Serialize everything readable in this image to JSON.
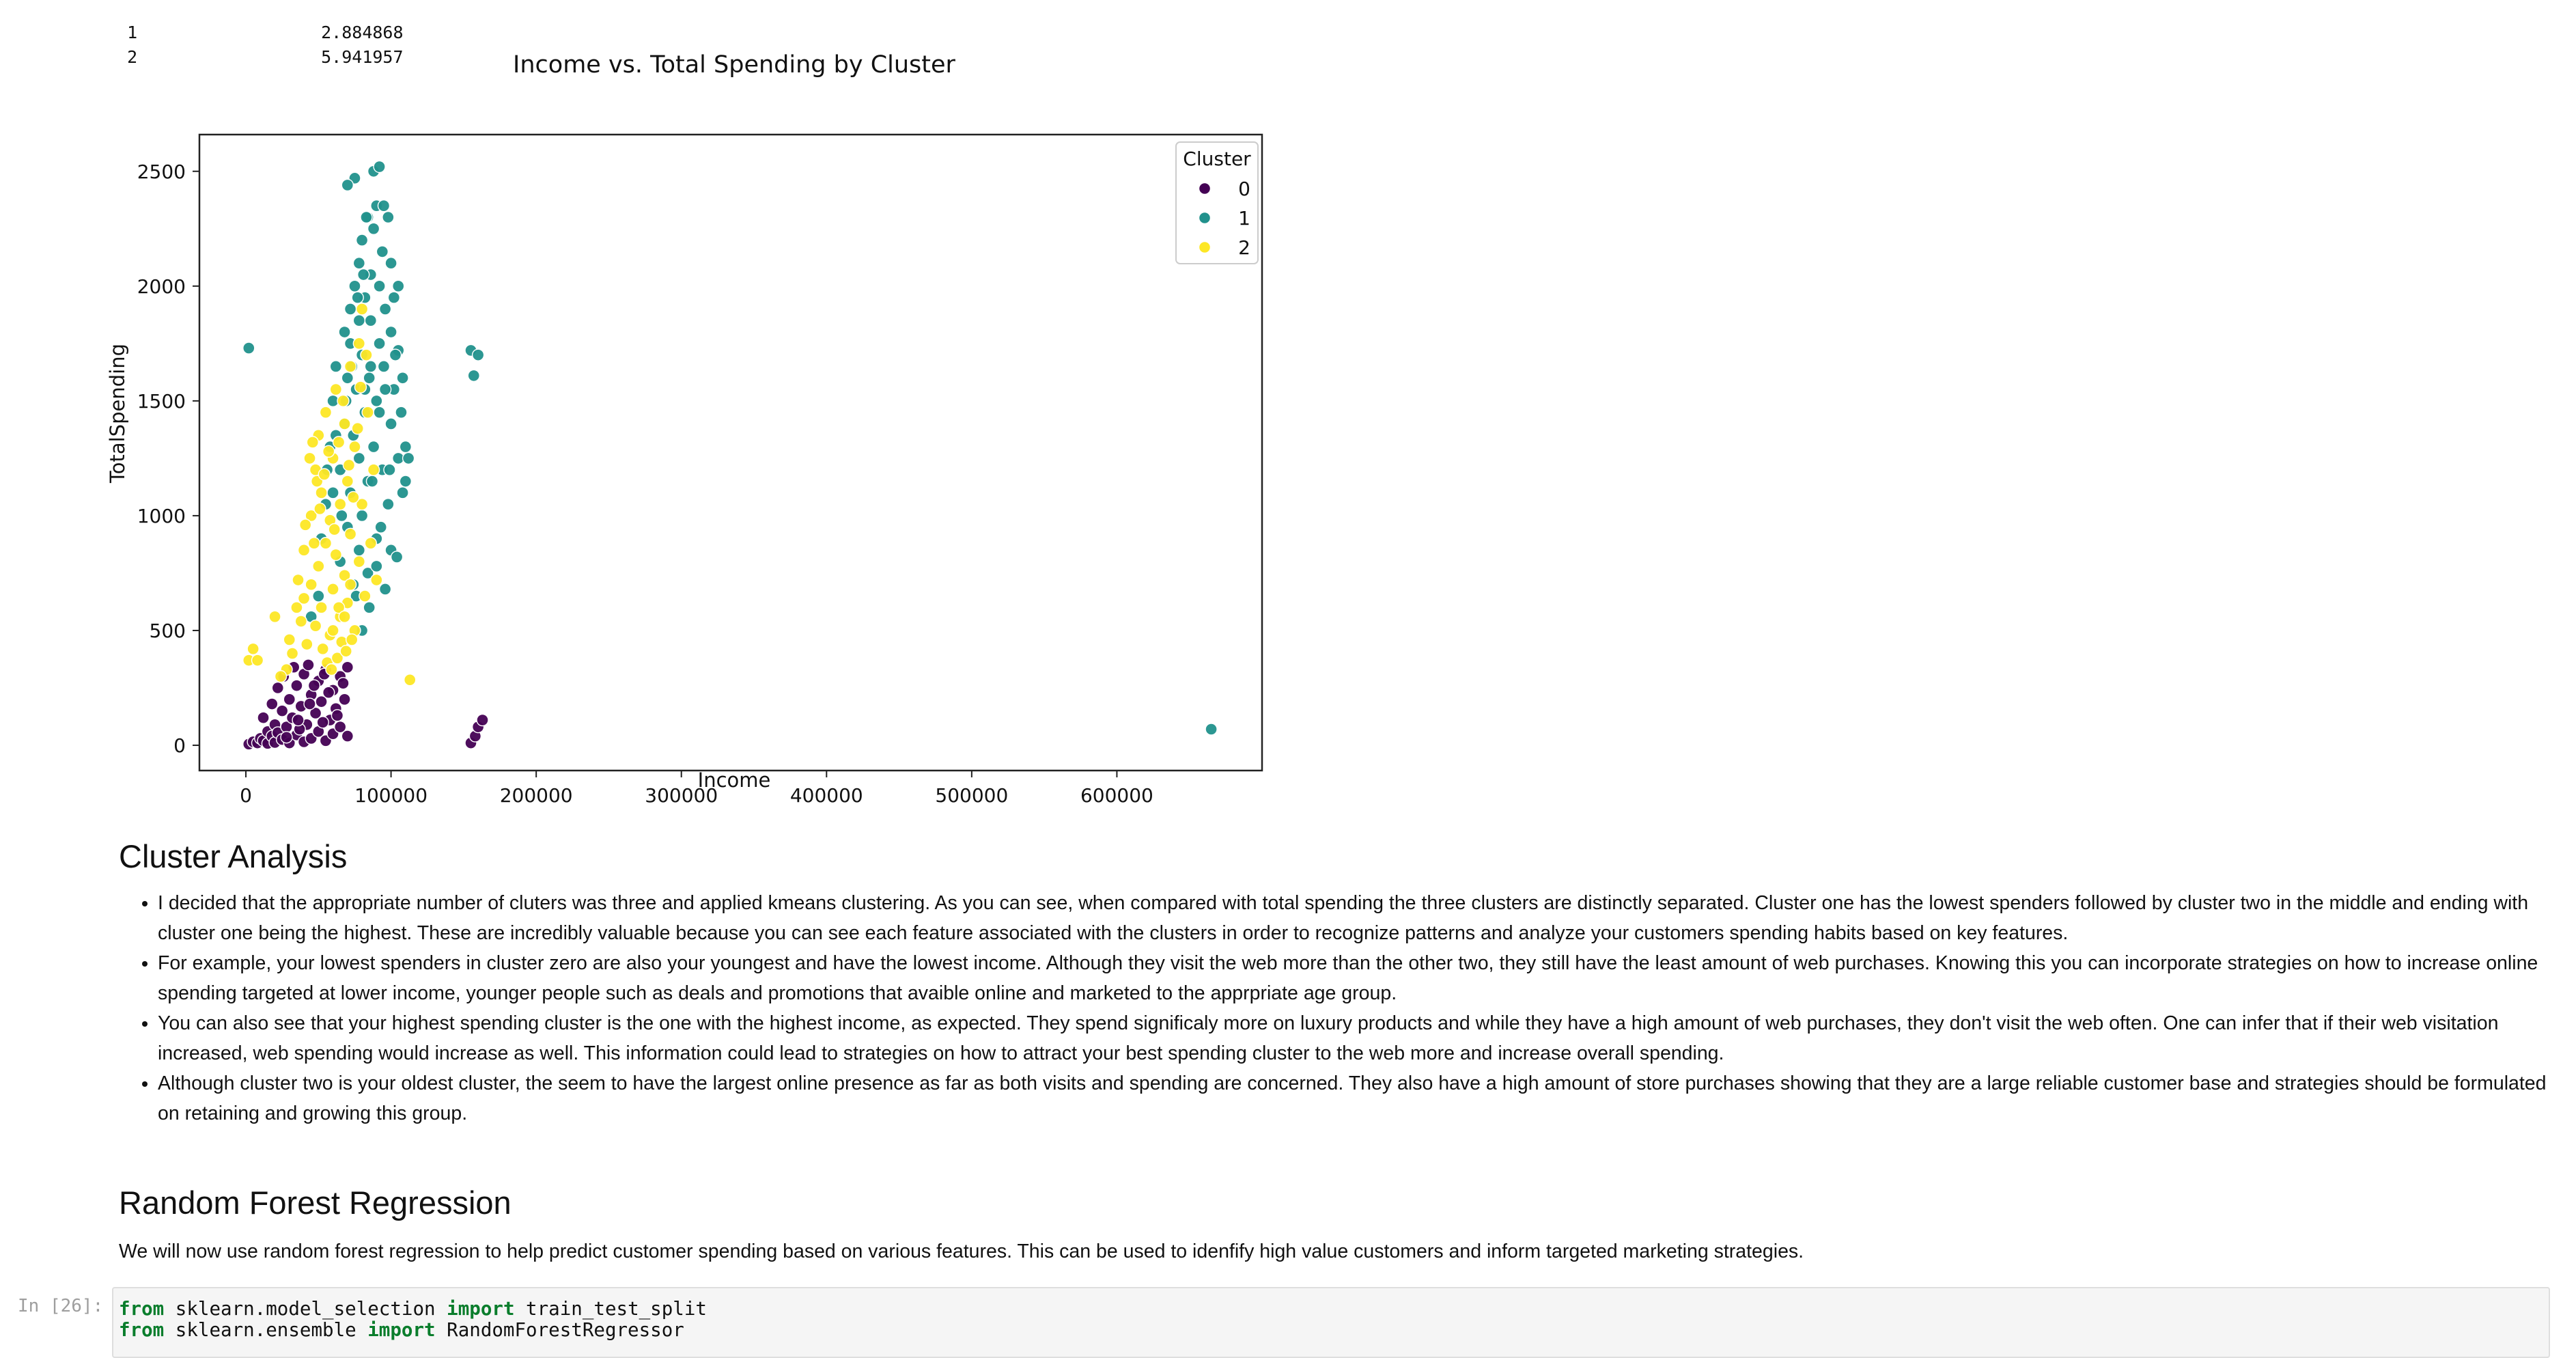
{
  "output_table": {
    "rows": [
      {
        "index": "1",
        "value": "2.884868"
      },
      {
        "index": "2",
        "value": "5.941957"
      }
    ]
  },
  "chart_data": {
    "type": "scatter",
    "title": "Income vs. Total Spending by Cluster",
    "xlabel": "Income",
    "ylabel": "TotalSpending",
    "xlim": [
      -32000,
      700000
    ],
    "ylim": [
      -110,
      2660
    ],
    "xticks": [
      0,
      100000,
      200000,
      300000,
      400000,
      500000,
      600000
    ],
    "yticks": [
      0,
      500,
      1000,
      1500,
      2000,
      2500
    ],
    "legend": {
      "title": "Cluster",
      "placement": "top-right"
    },
    "series": [
      {
        "name": "0",
        "color": "#440154",
        "points": [
          [
            2000,
            5
          ],
          [
            5000,
            15
          ],
          [
            8000,
            10
          ],
          [
            10000,
            30
          ],
          [
            12000,
            20
          ],
          [
            15000,
            8
          ],
          [
            15000,
            60
          ],
          [
            18000,
            40
          ],
          [
            20000,
            12
          ],
          [
            20000,
            90
          ],
          [
            22000,
            55
          ],
          [
            25000,
            25
          ],
          [
            25000,
            150
          ],
          [
            28000,
            80
          ],
          [
            30000,
            10
          ],
          [
            30000,
            200
          ],
          [
            32000,
            120
          ],
          [
            35000,
            45
          ],
          [
            35000,
            260
          ],
          [
            38000,
            170
          ],
          [
            40000,
            15
          ],
          [
            40000,
            310
          ],
          [
            42000,
            90
          ],
          [
            45000,
            220
          ],
          [
            45000,
            30
          ],
          [
            48000,
            140
          ],
          [
            50000,
            280
          ],
          [
            50000,
            60
          ],
          [
            52000,
            190
          ],
          [
            55000,
            20
          ],
          [
            55000,
            330
          ],
          [
            58000,
            110
          ],
          [
            60000,
            240
          ],
          [
            60000,
            50
          ],
          [
            62000,
            160
          ],
          [
            65000,
            300
          ],
          [
            65000,
            80
          ],
          [
            68000,
            200
          ],
          [
            70000,
            40
          ],
          [
            70000,
            340
          ],
          [
            12000,
            120
          ],
          [
            18000,
            180
          ],
          [
            22000,
            250
          ],
          [
            26000,
            300
          ],
          [
            33000,
            340
          ],
          [
            37000,
            70
          ],
          [
            43000,
            350
          ],
          [
            47000,
            260
          ],
          [
            53000,
            100
          ],
          [
            57000,
            230
          ],
          [
            63000,
            130
          ],
          [
            67000,
            270
          ],
          [
            28000,
            35
          ],
          [
            36000,
            110
          ],
          [
            44000,
            180
          ],
          [
            54000,
            310
          ],
          [
            155000,
            10
          ],
          [
            158000,
            40
          ],
          [
            160000,
            80
          ],
          [
            163000,
            110
          ]
        ]
      },
      {
        "name": "1",
        "color": "#21918c",
        "points": [
          [
            2000,
            1730
          ],
          [
            155000,
            1720
          ],
          [
            160000,
            1700
          ],
          [
            157000,
            1610
          ],
          [
            665000,
            70
          ],
          [
            105000,
            1720
          ],
          [
            45000,
            560
          ],
          [
            50000,
            650
          ],
          [
            52000,
            900
          ],
          [
            55000,
            1050
          ],
          [
            58000,
            1300
          ],
          [
            60000,
            1500
          ],
          [
            62000,
            1650
          ],
          [
            65000,
            800
          ],
          [
            65000,
            1200
          ],
          [
            68000,
            1400
          ],
          [
            68000,
            1800
          ],
          [
            70000,
            950
          ],
          [
            70000,
            1600
          ],
          [
            72000,
            1100
          ],
          [
            72000,
            1900
          ],
          [
            74000,
            700
          ],
          [
            74000,
            1350
          ],
          [
            75000,
            2000
          ],
          [
            76000,
            1550
          ],
          [
            78000,
            850
          ],
          [
            78000,
            1250
          ],
          [
            78000,
            2100
          ],
          [
            80000,
            1000
          ],
          [
            80000,
            1700
          ],
          [
            80000,
            2200
          ],
          [
            82000,
            1450
          ],
          [
            82000,
            1950
          ],
          [
            84000,
            750
          ],
          [
            84000,
            1150
          ],
          [
            84000,
            2300
          ],
          [
            85000,
            1600
          ],
          [
            86000,
            1850
          ],
          [
            86000,
            2050
          ],
          [
            88000,
            1300
          ],
          [
            88000,
            2250
          ],
          [
            90000,
            900
          ],
          [
            90000,
            1500
          ],
          [
            90000,
            2350
          ],
          [
            92000,
            1750
          ],
          [
            92000,
            2000
          ],
          [
            94000,
            1200
          ],
          [
            94000,
            2150
          ],
          [
            95000,
            1650
          ],
          [
            96000,
            1900
          ],
          [
            98000,
            1050
          ],
          [
            98000,
            2300
          ],
          [
            100000,
            1400
          ],
          [
            100000,
            1800
          ],
          [
            100000,
            2100
          ],
          [
            102000,
            1550
          ],
          [
            102000,
            1950
          ],
          [
            105000,
            1250
          ],
          [
            105000,
            2000
          ],
          [
            108000,
            1600
          ],
          [
            108000,
            1100
          ],
          [
            110000,
            1300
          ],
          [
            88000,
            2500
          ],
          [
            92000,
            2520
          ],
          [
            75000,
            2470
          ],
          [
            70000,
            2440
          ],
          [
            95000,
            2350
          ],
          [
            83000,
            2300
          ],
          [
            76000,
            650
          ],
          [
            80000,
            500
          ],
          [
            85000,
            600
          ],
          [
            90000,
            780
          ],
          [
            96000,
            680
          ],
          [
            100000,
            850
          ],
          [
            104000,
            820
          ],
          [
            72000,
            1750
          ],
          [
            78000,
            1850
          ],
          [
            86000,
            1650
          ],
          [
            92000,
            1450
          ],
          [
            96000,
            1550
          ],
          [
            82000,
            1550
          ],
          [
            87000,
            1150
          ],
          [
            93000,
            950
          ],
          [
            99000,
            1200
          ],
          [
            103000,
            1700
          ],
          [
            107000,
            1450
          ],
          [
            110000,
            1150
          ],
          [
            112000,
            1250
          ],
          [
            66000,
            1000
          ],
          [
            60000,
            1100
          ],
          [
            56000,
            1200
          ],
          [
            62000,
            1350
          ],
          [
            69000,
            1500
          ],
          [
            73000,
            1650
          ],
          [
            77000,
            1950
          ],
          [
            81000,
            2050
          ]
        ]
      },
      {
        "name": "2",
        "color": "#fde725",
        "points": [
          [
            5000,
            420
          ],
          [
            2000,
            370
          ],
          [
            8000,
            370
          ],
          [
            113000,
            285
          ],
          [
            20000,
            560
          ],
          [
            30000,
            460
          ],
          [
            35000,
            600
          ],
          [
            40000,
            850
          ],
          [
            42000,
            440
          ],
          [
            45000,
            700
          ],
          [
            45000,
            1000
          ],
          [
            48000,
            520
          ],
          [
            48000,
            1200
          ],
          [
            50000,
            780
          ],
          [
            50000,
            1350
          ],
          [
            52000,
            600
          ],
          [
            52000,
            1100
          ],
          [
            55000,
            880
          ],
          [
            55000,
            1450
          ],
          [
            58000,
            480
          ],
          [
            58000,
            980
          ],
          [
            60000,
            680
          ],
          [
            60000,
            1250
          ],
          [
            62000,
            1550
          ],
          [
            62000,
            830
          ],
          [
            65000,
            560
          ],
          [
            65000,
            1050
          ],
          [
            68000,
            740
          ],
          [
            68000,
            1400
          ],
          [
            70000,
            620
          ],
          [
            70000,
            1150
          ],
          [
            72000,
            920
          ],
          [
            72000,
            1650
          ],
          [
            75000,
            500
          ],
          [
            75000,
            1300
          ],
          [
            78000,
            800
          ],
          [
            78000,
            1750
          ],
          [
            80000,
            1050
          ],
          [
            80000,
            1900
          ],
          [
            82000,
            650
          ],
          [
            84000,
            1450
          ],
          [
            86000,
            880
          ],
          [
            88000,
            1200
          ],
          [
            90000,
            720
          ],
          [
            38000,
            540
          ],
          [
            40000,
            640
          ],
          [
            44000,
            1250
          ],
          [
            46000,
            1320
          ],
          [
            49000,
            1150
          ],
          [
            53000,
            420
          ],
          [
            56000,
            360
          ],
          [
            59000,
            330
          ],
          [
            63000,
            380
          ],
          [
            66000,
            450
          ],
          [
            69000,
            410
          ],
          [
            73000,
            460
          ],
          [
            36000,
            720
          ],
          [
            41000,
            960
          ],
          [
            47000,
            880
          ],
          [
            51000,
            1030
          ],
          [
            54000,
            1180
          ],
          [
            57000,
            1280
          ],
          [
            61000,
            940
          ],
          [
            64000,
            1320
          ],
          [
            67000,
            1500
          ],
          [
            71000,
            1220
          ],
          [
            74000,
            1080
          ],
          [
            77000,
            1380
          ],
          [
            79000,
            1560
          ],
          [
            83000,
            1700
          ],
          [
            32000,
            400
          ],
          [
            28000,
            330
          ],
          [
            24000,
            300
          ],
          [
            60000,
            500
          ],
          [
            64000,
            600
          ],
          [
            68000,
            560
          ],
          [
            72000,
            700
          ]
        ]
      }
    ]
  },
  "cluster_analysis": {
    "heading": "Cluster Analysis",
    "bullets": [
      "I decided that the appropriate number of cluters was three and applied kmeans clustering. As you can see, when compared with total spending the three clusters are distinctly separated. Cluster one has the lowest spenders followed by cluster two in the middle and ending with cluster one being the highest. These are incredibly valuable because you can see each feature associated with the clusters in order to recognize patterns and analyze your customers spending habits based on key features.",
      "For example, your lowest spenders in cluster zero are also your youngest and have the lowest income. Although they visit the web more than the other two, they still have the least amount of web purchases. Knowing this you can incorporate strategies on how to increase online spending targeted at lower income, younger people such as deals and promotions that avaible online and marketed to the apprpriate age group.",
      "You can also see that your highest spending cluster is the one with the highest income, as expected. They spend significaly more on luxury products and while they have a high amount of web purchases, they don't visit the web often. One can infer that if their web visitation increased, web spending would increase as well. This information could lead to strategies on how to attract your best spending cluster to the web more and increase overall spending.",
      "Although cluster two is your oldest cluster, the seem to have the largest online presence as far as both visits and spending are concerned. They also have a high amount of store purchases showing that they are a large reliable customer base and strategies should be formulated on retaining and growing this group."
    ]
  },
  "random_forest": {
    "heading": "Random Forest Regression",
    "paragraph": "We will now use random forest regression to help predict customer spending based on various features. This can be used to idenfify high value customers and inform targeted marketing strategies."
  },
  "code_cell": {
    "prompt": "In [26]:",
    "lines": [
      {
        "kw1": "from",
        "mod": " sklearn.model_selection ",
        "kw2": "import",
        "name": " train_test_split"
      },
      {
        "kw1": "from",
        "mod": " sklearn.ensemble ",
        "kw2": "import",
        "name": " RandomForestRegressor"
      }
    ]
  }
}
